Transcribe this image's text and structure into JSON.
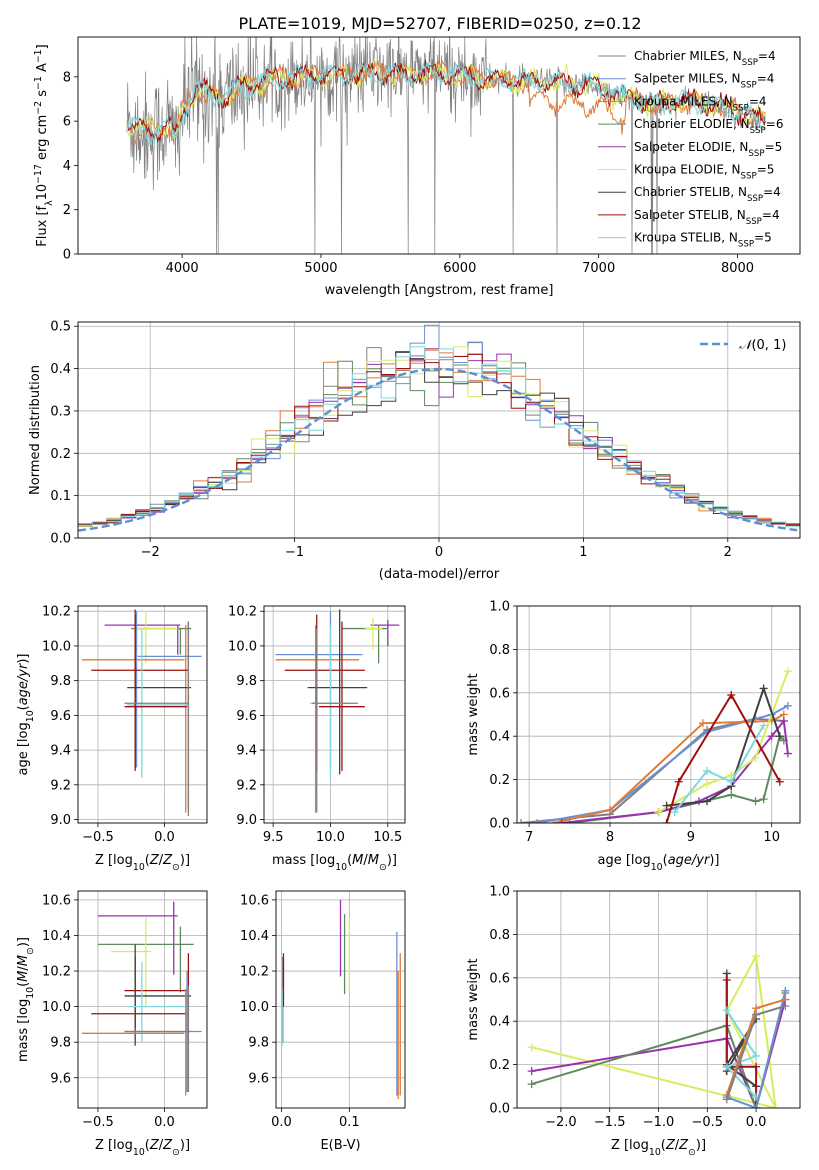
{
  "figure_title": "PLATE=1019, MJD=52707, FIBERID=0250, z=0.12",
  "colors": {
    "CM": "#808080",
    "SM": "#6b8fd8",
    "KM": "#e07b39",
    "CE": "#5f8a5f",
    "SE": "#9b30b0",
    "KE": "#d8ec60",
    "CS": "#404040",
    "SS": "#9e1010",
    "KS": "#7fd8e0",
    "normal": "#5b8fd6",
    "grid": "#b0b0b0"
  },
  "legend": [
    {
      "key": "CM",
      "pre": "Chabrier MILES, N",
      "sub": "SSP",
      "post": "=4"
    },
    {
      "key": "SM",
      "pre": "Salpeter MILES, N",
      "sub": "SSP",
      "post": "=4"
    },
    {
      "key": "KM",
      "pre": "Kroupa MILES, N",
      "sub": "SSP",
      "post": "=4"
    },
    {
      "key": "CE",
      "pre": "Chabrier ELODIE, N",
      "sub": "SSP",
      "post": "=6"
    },
    {
      "key": "SE",
      "pre": "Salpeter ELODIE, N",
      "sub": "SSP",
      "post": "=5"
    },
    {
      "key": "KE",
      "pre": "Kroupa ELODIE, N",
      "sub": "SSP",
      "post": "=5"
    },
    {
      "key": "CS",
      "pre": "Chabrier STELIB, N",
      "sub": "SSP",
      "post": "=4"
    },
    {
      "key": "SS",
      "pre": "Salpeter STELIB, N",
      "sub": "SSP",
      "post": "=4"
    },
    {
      "key": "KS",
      "pre": "Kroupa STELIB, N",
      "sub": "SSP",
      "post": "=5"
    }
  ],
  "chart_data": [
    {
      "id": "spectrum",
      "type": "line",
      "xlabel": "wavelength [Angstrom, rest frame]",
      "ylabel": "Flux [fλ10⁻¹⁷ erg cm⁻² s⁻¹ A⁻¹]",
      "xlim": [
        3250,
        8450
      ],
      "ylim": [
        0,
        9.8
      ],
      "xticks": [
        4000,
        5000,
        6000,
        7000,
        8000
      ],
      "yticks": [
        0,
        2,
        4,
        6,
        8
      ],
      "x_range_data": [
        3600,
        8200
      ],
      "model_anchors": {
        "x": [
          3580,
          3700,
          3800,
          3900,
          3950,
          4000,
          4100,
          4200,
          4300,
          4400,
          4600,
          4800,
          5000,
          5200,
          5400,
          5600,
          5800,
          6000,
          6200,
          6400,
          6600,
          6800,
          7000,
          7200,
          7400,
          7600,
          7800,
          8000,
          8200
        ],
        "y": [
          6.0,
          5.6,
          5.5,
          5.9,
          5.1,
          6.4,
          7.4,
          7.2,
          7.0,
          7.5,
          7.8,
          8.0,
          8.1,
          8.1,
          8.2,
          8.1,
          8.2,
          8.1,
          7.9,
          7.8,
          7.8,
          7.7,
          7.6,
          7.0,
          6.8,
          6.9,
          6.8,
          6.4,
          6.0
        ]
      }
    },
    {
      "id": "residual_hist",
      "type": "line",
      "xlabel": "(data-model)/error",
      "ylabel": "Normed distribution",
      "xlim": [
        -2.5,
        2.5
      ],
      "ylim": [
        0,
        0.51
      ],
      "xticks": [
        -2,
        -1,
        0,
        1,
        2
      ],
      "xtick_labels": [
        "−2",
        "−1",
        "0",
        "1",
        "2"
      ],
      "yticks": [
        0.0,
        0.1,
        0.2,
        0.3,
        0.4,
        0.5
      ],
      "ytick_labels": [
        "0.0",
        "0.1",
        "0.2",
        "0.3",
        "0.4",
        "0.5"
      ],
      "bin_width": 0.1,
      "normal_curve_label": "N(0,1)"
    },
    {
      "id": "age_vs_Z",
      "type": "scatter",
      "xlabel": "Z [log10(Z/Z⊙)]",
      "ylabel": "age [log10(age/yr)]",
      "xlim": [
        -0.65,
        0.32
      ],
      "ylim": [
        8.98,
        10.23
      ],
      "xticks": [
        -0.5,
        0.0
      ],
      "xtick_labels": [
        "−0.5",
        "0.0"
      ],
      "yticks": [
        9.0,
        9.2,
        9.4,
        9.6,
        9.8,
        10.0,
        10.2
      ],
      "ytick_labels": [
        "9.0",
        "9.2",
        "9.4",
        "9.6",
        "9.8",
        "10.0",
        "10.2"
      ],
      "error_bars": [
        {
          "key": "SE",
          "x": [
            -0.45,
            0.12
          ],
          "xc": 0.1,
          "y": [
            9.95,
            10.12
          ],
          "yc": 10.12
        },
        {
          "key": "CE",
          "x": [
            -0.25,
            0.2
          ],
          "xc": 0.12,
          "y": [
            9.95,
            10.1
          ],
          "yc": 10.1
        },
        {
          "key": "KE",
          "x": [
            -0.23,
            0.1
          ],
          "xc": -0.14,
          "y": [
            9.9,
            10.2
          ],
          "yc": 10.1
        },
        {
          "key": "SM",
          "x": [
            -0.2,
            0.28
          ],
          "xc": -0.21,
          "y": [
            9.3,
            10.2
          ],
          "yc": 9.94
        },
        {
          "key": "KM",
          "x": [
            -0.62,
            0.15
          ],
          "xc": 0.16,
          "y": [
            9.04,
            10.12
          ],
          "yc": 9.92
        },
        {
          "key": "SS",
          "x": [
            -0.55,
            0.18
          ],
          "xc": 0.18,
          "y": [
            9.06,
            10.14
          ],
          "yc": 9.86
        },
        {
          "key": "CS",
          "x": [
            -0.28,
            0.2
          ],
          "xc": -0.22,
          "y": [
            9.3,
            10.21
          ],
          "yc": 9.76
        },
        {
          "key": "KS",
          "x": [
            -0.28,
            0.18
          ],
          "xc": -0.17,
          "y": [
            9.24,
            10.1
          ],
          "yc": 9.66
        },
        {
          "key": "SS",
          "x": [
            -0.3,
            0.17
          ],
          "xc": -0.22,
          "y": [
            9.28,
            10.18
          ],
          "yc": 9.65
        },
        {
          "key": "CM",
          "x": [
            -0.3,
            0.18
          ],
          "xc": 0.18,
          "y": [
            9.02,
            10.14
          ],
          "yc": 9.67
        }
      ]
    },
    {
      "id": "age_vs_mass",
      "type": "scatter",
      "xlabel": "mass [log10(M/M⊙)]",
      "ylabel": "",
      "xlim": [
        9.42,
        10.65
      ],
      "ylim": [
        8.98,
        10.23
      ],
      "xticks": [
        9.5,
        10.0,
        10.5
      ],
      "xtick_labels": [
        "9.5",
        "10.0",
        "10.5"
      ],
      "yticks": [
        9.0,
        9.2,
        9.4,
        9.6,
        9.8,
        10.0,
        10.2
      ],
      "ytick_labels": [
        "9.0",
        "9.2",
        "9.4",
        "9.6",
        "9.8",
        "10.0",
        "10.2"
      ],
      "error_bars": [
        {
          "key": "SE",
          "x": [
            10.35,
            10.6
          ],
          "xc": 10.5,
          "y": [
            10.0,
            10.15
          ],
          "yc": 10.12
        },
        {
          "key": "CE",
          "x": [
            10.1,
            10.5
          ],
          "xc": 10.42,
          "y": [
            9.9,
            10.12
          ],
          "yc": 10.1
        },
        {
          "key": "KE",
          "x": [
            10.3,
            10.45
          ],
          "xc": 10.37,
          "y": [
            9.98,
            10.16
          ],
          "yc": 10.1
        },
        {
          "key": "SM",
          "x": [
            9.52,
            10.28
          ],
          "xc": 10.0,
          "y": [
            9.3,
            10.2
          ],
          "yc": 9.95
        },
        {
          "key": "KM",
          "x": [
            9.52,
            10.25
          ],
          "xc": 9.87,
          "y": [
            9.04,
            10.12
          ],
          "yc": 9.92
        },
        {
          "key": "SS",
          "x": [
            9.6,
            10.3
          ],
          "xc": 10.1,
          "y": [
            9.28,
            10.14
          ],
          "yc": 9.86
        },
        {
          "key": "CS",
          "x": [
            9.8,
            10.32
          ],
          "xc": 10.08,
          "y": [
            9.26,
            10.21
          ],
          "yc": 9.76
        },
        {
          "key": "KS",
          "x": [
            9.82,
            10.15
          ],
          "xc": 10.0,
          "y": [
            9.24,
            10.12
          ],
          "yc": 9.67
        },
        {
          "key": "SS",
          "x": [
            9.9,
            10.3
          ],
          "xc": 9.88,
          "y": [
            9.27,
            10.18
          ],
          "yc": 9.65
        },
        {
          "key": "CM",
          "x": [
            9.84,
            10.24
          ],
          "xc": 9.88,
          "y": [
            9.04,
            10.1
          ],
          "yc": 9.67
        }
      ]
    },
    {
      "id": "mw_vs_age",
      "type": "line",
      "xlabel": "age [log10(age/yr)]",
      "ylabel": "mass weight",
      "xlim": [
        6.85,
        10.35
      ],
      "ylim": [
        0,
        1
      ],
      "xticks": [
        7,
        8,
        9,
        10
      ],
      "xtick_labels": [
        "7",
        "8",
        "9",
        "10"
      ],
      "yticks": [
        0.0,
        0.2,
        0.4,
        0.6,
        0.8,
        1.0
      ],
      "ytick_labels": [
        "0.0",
        "0.2",
        "0.4",
        "0.6",
        "0.8",
        "1.0"
      ],
      "series": [
        {
          "key": "CM",
          "x": [
            6.9,
            8.0,
            9.2,
            9.8,
            10.15
          ],
          "y": [
            0.0,
            0.04,
            0.43,
            0.48,
            0.47
          ]
        },
        {
          "key": "SM",
          "x": [
            7.1,
            8.0,
            9.2,
            10.0,
            10.2
          ],
          "y": [
            0.0,
            0.06,
            0.42,
            0.5,
            0.54
          ]
        },
        {
          "key": "KM",
          "x": [
            7.3,
            8.0,
            9.15,
            10.0,
            10.15
          ],
          "y": [
            0.0,
            0.06,
            0.46,
            0.47,
            0.5
          ]
        },
        {
          "key": "CE",
          "x": [
            7.5,
            8.6,
            9.5,
            9.8,
            9.9,
            10.1,
            10.15
          ],
          "y": [
            0.0,
            0.05,
            0.13,
            0.1,
            0.11,
            0.4,
            0.38
          ]
        },
        {
          "key": "SE",
          "x": [
            7.4,
            8.6,
            9.1,
            9.5,
            10.0,
            10.15,
            10.2
          ],
          "y": [
            0.0,
            0.05,
            0.1,
            0.17,
            0.4,
            0.47,
            0.32
          ]
        },
        {
          "key": "KE",
          "x": [
            8.6,
            9.2,
            9.5,
            9.8,
            10.2
          ],
          "y": [
            0.05,
            0.18,
            0.22,
            0.3,
            0.7
          ]
        },
        {
          "key": "CS",
          "x": [
            8.7,
            9.2,
            9.5,
            9.9,
            10.1
          ],
          "y": [
            0.08,
            0.1,
            0.17,
            0.62,
            0.4
          ]
        },
        {
          "key": "SS",
          "x": [
            8.7,
            8.85,
            9.5,
            10.1
          ],
          "y": [
            0.0,
            0.19,
            0.59,
            0.19
          ]
        },
        {
          "key": "KS",
          "x": [
            8.8,
            9.2,
            9.5,
            9.9
          ],
          "y": [
            0.05,
            0.24,
            0.19,
            0.45
          ]
        }
      ]
    },
    {
      "id": "mass_vs_Z",
      "type": "scatter",
      "xlabel": "Z [log10(Z/Z⊙)]",
      "ylabel": "mass [log10(M/M⊙)]",
      "xlim": [
        -0.65,
        0.32
      ],
      "ylim": [
        9.43,
        10.65
      ],
      "xticks": [
        -0.5,
        0.0
      ],
      "xtick_labels": [
        "−0.5",
        "0.0"
      ],
      "yticks": [
        9.6,
        9.8,
        10.0,
        10.2,
        10.4,
        10.6
      ],
      "ytick_labels": [
        "9.6",
        "9.8",
        "10.0",
        "10.2",
        "10.4",
        "10.6"
      ],
      "error_bars": [
        {
          "key": "SE",
          "x": [
            -0.5,
            0.1
          ],
          "xc": 0.07,
          "y": [
            10.18,
            10.59
          ],
          "yc": 10.51
        },
        {
          "key": "CE",
          "x": [
            -0.5,
            0.22
          ],
          "xc": 0.12,
          "y": [
            10.08,
            10.45
          ],
          "yc": 10.35
        },
        {
          "key": "KE",
          "x": [
            -0.4,
            -0.1
          ],
          "xc": -0.14,
          "y": [
            10.0,
            10.5
          ],
          "yc": 10.31
        },
        {
          "key": "SS",
          "x": [
            -0.3,
            0.17
          ],
          "xc": -0.22,
          "y": [
            9.88,
            10.28
          ],
          "yc": 10.09
        },
        {
          "key": "CS",
          "x": [
            -0.3,
            0.2
          ],
          "xc": -0.22,
          "y": [
            9.78,
            10.35
          ],
          "yc": 10.06
        },
        {
          "key": "KS",
          "x": [
            -0.28,
            0.18
          ],
          "xc": -0.17,
          "y": [
            9.8,
            10.25
          ],
          "yc": 10.0
        },
        {
          "key": "SS",
          "x": [
            -0.55,
            0.18
          ],
          "xc": 0.18,
          "y": [
            9.52,
            10.3
          ],
          "yc": 9.96
        },
        {
          "key": "SM",
          "x": [
            -0.3,
            0.28
          ],
          "xc": 0.17,
          "y": [
            9.52,
            10.2
          ],
          "yc": 9.86
        },
        {
          "key": "KM",
          "x": [
            -0.62,
            0.15
          ],
          "xc": 0.16,
          "y": [
            9.5,
            10.1
          ],
          "yc": 9.85
        },
        {
          "key": "CM",
          "x": [
            -0.3,
            0.2
          ],
          "xc": 0.18,
          "y": [
            9.52,
            10.12
          ],
          "yc": 9.86
        }
      ]
    },
    {
      "id": "mass_vs_EBV",
      "type": "scatter",
      "xlabel": "E(B-V)",
      "ylabel": "",
      "xlim": [
        -0.008,
        0.182
      ],
      "ylim": [
        9.43,
        10.65
      ],
      "xticks": [
        0.0,
        0.1
      ],
      "xtick_labels": [
        "0.0",
        "0.1"
      ],
      "yticks": [
        9.6,
        9.8,
        10.0,
        10.2,
        10.4,
        10.6
      ],
      "ytick_labels": [
        "9.6",
        "9.8",
        "10.0",
        "10.2",
        "10.4",
        "10.6"
      ],
      "vbars": [
        {
          "key": "CM",
          "x": 0.002,
          "y": [
            9.8,
            10.28
          ]
        },
        {
          "key": "SS",
          "x": 0.003,
          "y": [
            10.0,
            10.3
          ]
        },
        {
          "key": "KS",
          "x": 0.001,
          "y": [
            9.78,
            10.1
          ]
        },
        {
          "key": "SE",
          "x": 0.087,
          "y": [
            10.17,
            10.6
          ]
        },
        {
          "key": "CE",
          "x": 0.093,
          "y": [
            10.07,
            10.52
          ]
        },
        {
          "key": "KE",
          "x": 0.1,
          "y": [
            10.1,
            10.5
          ]
        },
        {
          "key": "SM",
          "x": 0.17,
          "y": [
            9.5,
            10.42
          ]
        },
        {
          "key": "KM",
          "x": 0.172,
          "y": [
            9.48,
            10.2
          ]
        },
        {
          "key": "KM",
          "x": 0.175,
          "y": [
            9.5,
            10.3
          ]
        }
      ]
    },
    {
      "id": "mw_vs_Z",
      "type": "line",
      "xlabel": "Z [log10(Z/Z⊙)]",
      "ylabel": "mass weight",
      "xlim": [
        -2.45,
        0.45
      ],
      "ylim": [
        0,
        1
      ],
      "xticks": [
        -2.0,
        -1.5,
        -1.0,
        -0.5,
        0.0
      ],
      "xtick_labels": [
        "−2.0",
        "−1.5",
        "−1.0",
        "−0.5",
        "0.0"
      ],
      "yticks": [
        0.0,
        0.2,
        0.4,
        0.6,
        0.8,
        1.0
      ],
      "ytick_labels": [
        "0.0",
        "0.2",
        "0.4",
        "0.6",
        "0.8",
        "1.0"
      ],
      "series": [
        {
          "key": "KE",
          "x": [
            -2.3,
            0.2,
            -0.3,
            0.0,
            0.2
          ],
          "y": [
            0.28,
            0.0,
            0.45,
            0.7,
            0.0
          ]
        },
        {
          "key": "SE",
          "x": [
            -2.3,
            -0.3,
            0.0,
            0.3
          ],
          "y": [
            0.17,
            0.32,
            0.0,
            0.5
          ]
        },
        {
          "key": "CE",
          "x": [
            -2.3,
            -0.3,
            0.0,
            0.3
          ],
          "y": [
            0.11,
            0.38,
            0.0,
            0.53
          ]
        },
        {
          "key": "CS",
          "x": [
            -0.3,
            -0.3,
            0.0,
            -0.3,
            0.0
          ],
          "y": [
            0.62,
            0.17,
            0.41,
            0.2,
            0.1
          ]
        },
        {
          "key": "SS",
          "x": [
            -0.3,
            -0.3,
            0.0,
            0.0
          ],
          "y": [
            0.59,
            0.19,
            0.19,
            0.0
          ]
        },
        {
          "key": "KS",
          "x": [
            -0.3,
            0.0,
            -0.3,
            0.0
          ],
          "y": [
            0.45,
            0.24,
            0.19,
            0.05
          ]
        },
        {
          "key": "SM",
          "x": [
            -0.3,
            0.0,
            0.3
          ],
          "y": [
            0.05,
            0.0,
            0.54
          ]
        },
        {
          "key": "KM",
          "x": [
            -0.3,
            0.0,
            0.3
          ],
          "y": [
            0.06,
            0.46,
            0.5
          ]
        },
        {
          "key": "CM",
          "x": [
            -0.3,
            0.0,
            0.3
          ],
          "y": [
            0.04,
            0.43,
            0.47
          ]
        }
      ]
    }
  ]
}
